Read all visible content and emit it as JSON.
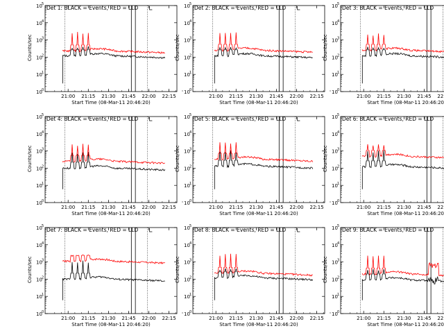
{
  "chart_data": {
    "type": "line",
    "layout": "3x3-grid",
    "shared": {
      "x_ticks": [
        "21:00",
        "21:15",
        "21:30",
        "21:45",
        "22:00",
        "22:15"
      ],
      "x_tick_minutes": [
        0,
        15,
        30,
        45,
        60,
        75
      ],
      "xlim_minutes": [
        -13,
        85
      ],
      "ylim": [
        1,
        100000
      ],
      "y_scale": "log",
      "y_tick_bases": [
        "10",
        "10",
        "10",
        "10",
        "10",
        "10"
      ],
      "y_tick_exps": [
        "0",
        "1",
        "2",
        "3",
        "4",
        "5"
      ],
      "ylabel": "Counts/sec",
      "xlabel": "Start Time (08-Mar-11 20:46:20)",
      "vertical_markers_minutes": [
        -2.5,
        47,
        50,
        59
      ],
      "minor_x_tick_step_minutes": 5
    },
    "panels": [
      {
        "title": "Det 1: BLACK = Events, RED = LLD",
        "start": -4,
        "black_level": 120,
        "red_level": 230,
        "red_peak": 2800,
        "black_peak": 400,
        "extra_bursts": false,
        "dip": true
      },
      {
        "title": "Det 2: BLACK = Events, RED = LLD",
        "start": -1,
        "black_level": 120,
        "red_level": 250,
        "red_peak": 2500,
        "black_peak": 380,
        "extra_bursts": false,
        "dip": true
      },
      {
        "title": "Det 3: BLACK = Events, RED = LLD",
        "start": -1,
        "black_level": 120,
        "red_level": 250,
        "red_peak": 2200,
        "black_peak": 380,
        "extra_bursts": false,
        "dip": true
      },
      {
        "title": "Det 4: BLACK = Events, RED = LLD",
        "start": -4,
        "black_level": 100,
        "red_level": 250,
        "red_peak": 2400,
        "black_peak": 800,
        "extra_bursts": false,
        "dip": false
      },
      {
        "title": "Det 5: BLACK = Events, RED = LLD",
        "start": -1,
        "black_level": 130,
        "red_level": 330,
        "red_peak": 3000,
        "black_peak": 1000,
        "extra_bursts": false,
        "dip": false
      },
      {
        "title": "Det 6: BLACK = Events, RED = LLD",
        "start": -1,
        "black_level": 120,
        "red_level": 480,
        "red_peak": 2500,
        "black_peak": 1000,
        "extra_bursts": false,
        "dip": false
      },
      {
        "title": "Det 7: BLACK = Events, RED = LLD",
        "start": -4,
        "black_level": 100,
        "red_level": 1100,
        "red_peak": 2500,
        "black_peak": 1100,
        "extra_bursts": false,
        "dip": false
      },
      {
        "title": "Det 8: BLACK = Events, RED = LLD",
        "start": -1,
        "black_level": 120,
        "red_level": 220,
        "red_peak": 2800,
        "black_peak": 400,
        "extra_bursts": false,
        "dip": false
      },
      {
        "title": "Det 9: BLACK = Events, RED = LLD",
        "start": -1,
        "black_level": 90,
        "red_level": 200,
        "red_peak": 2600,
        "black_peak": 380,
        "extra_bursts": true,
        "dip": false
      }
    ],
    "spike_minutes": [
      3,
      7,
      11,
      15
    ],
    "colors": {
      "events": "#000000",
      "lld": "#ff0000",
      "axes": "#000000"
    }
  }
}
